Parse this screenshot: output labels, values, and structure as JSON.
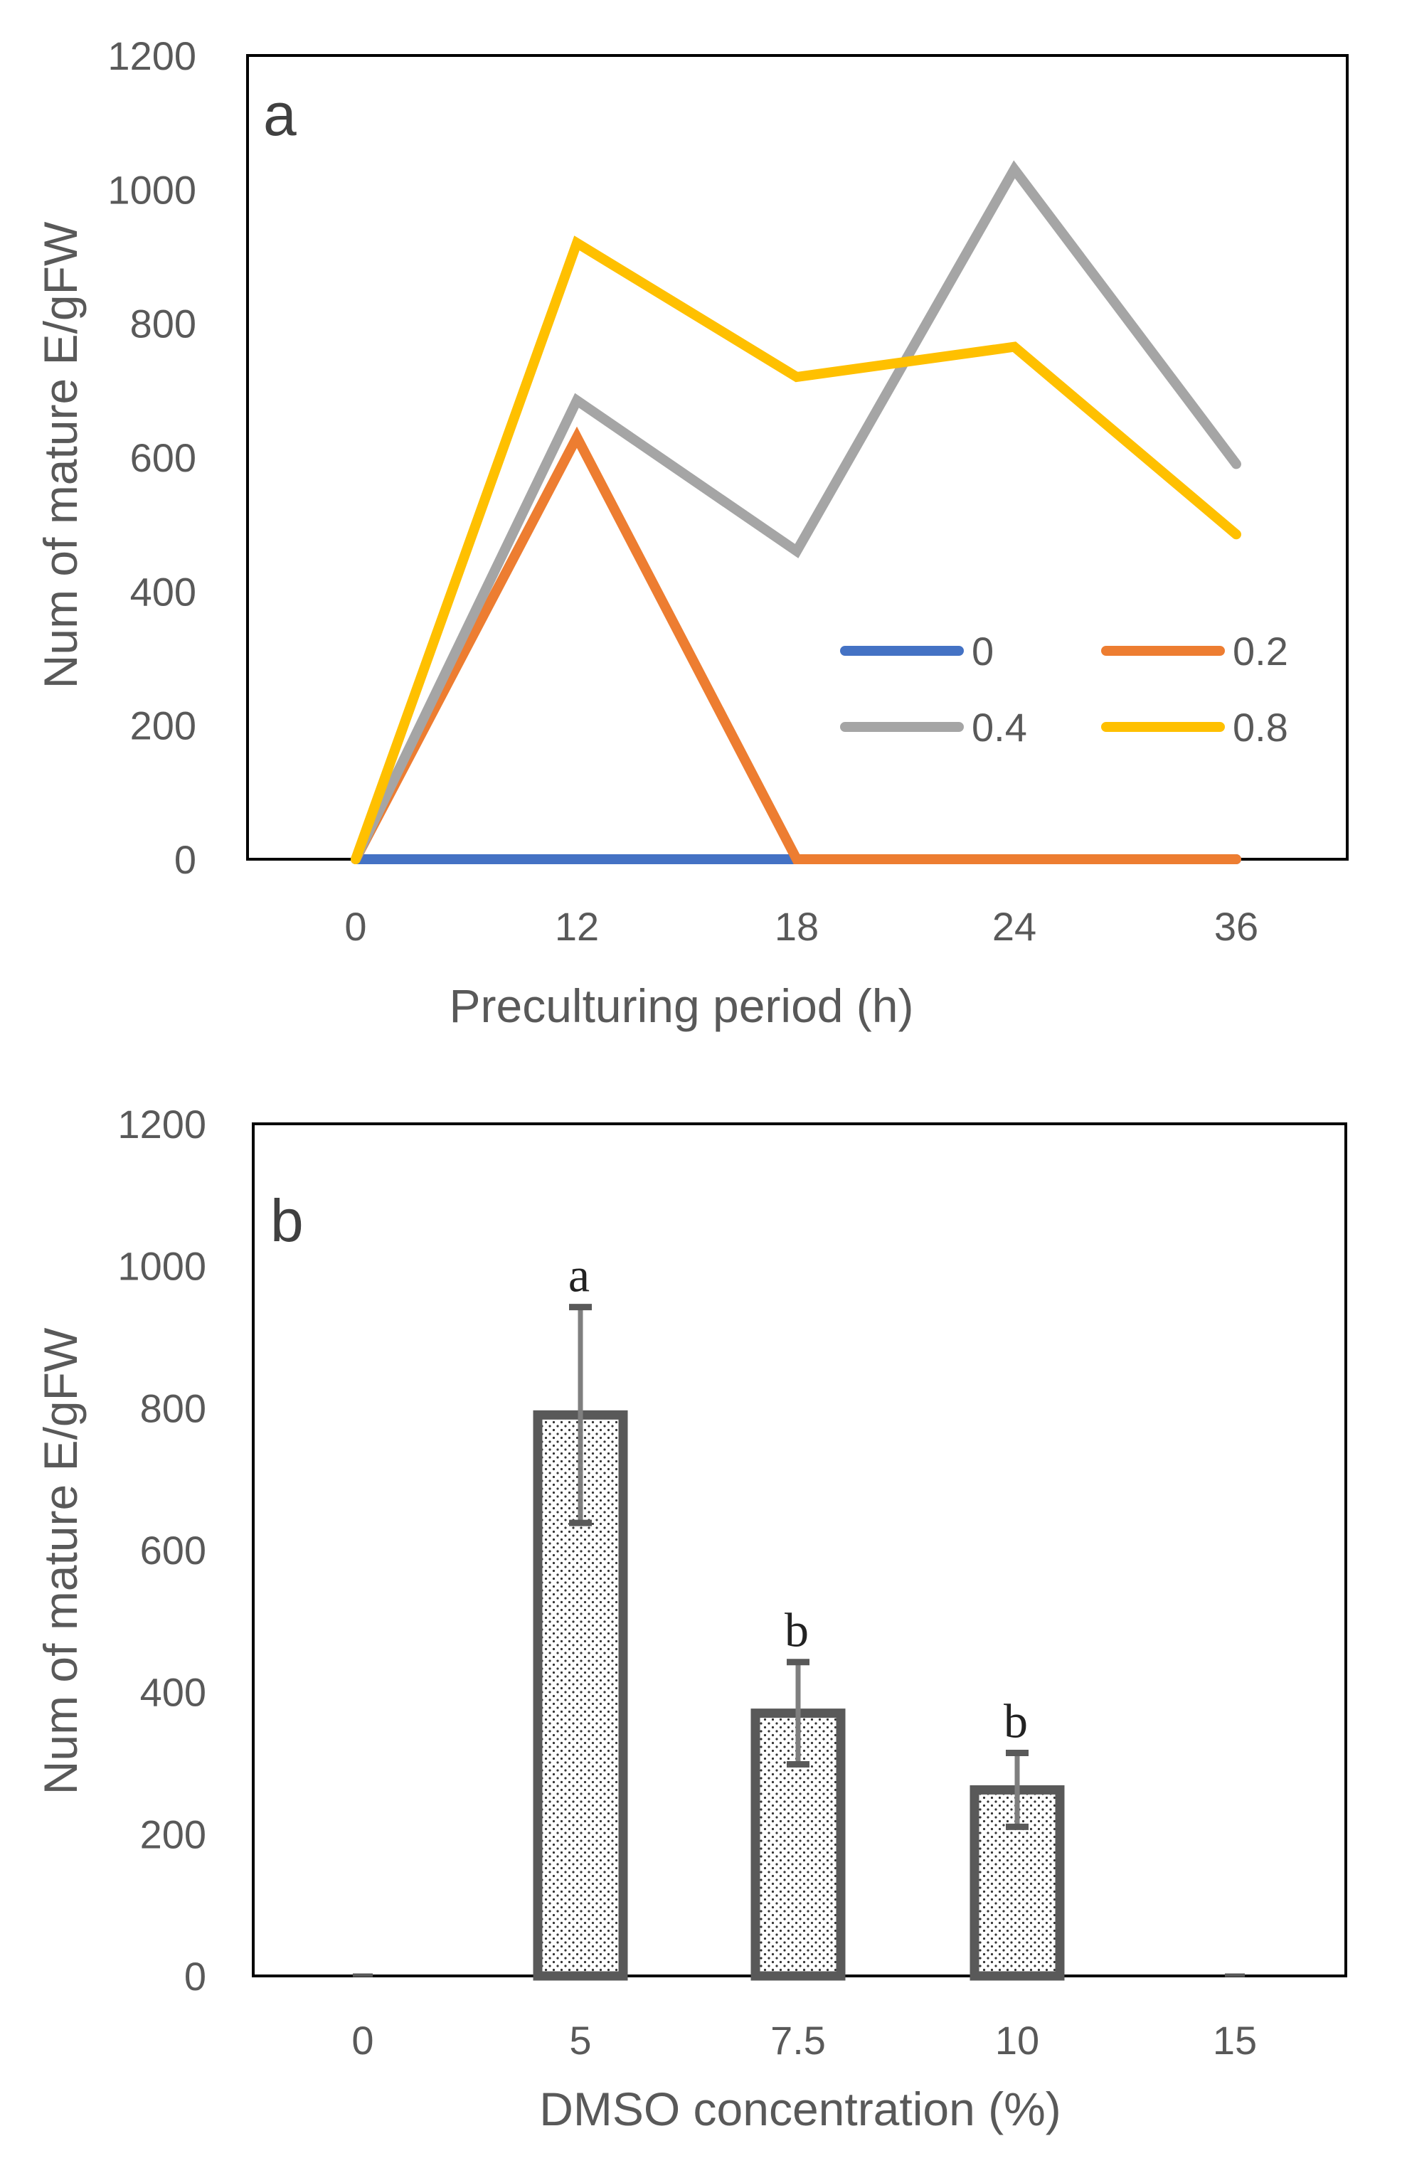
{
  "chart_data": [
    {
      "type": "line",
      "panel_label": "a",
      "xlabel": "Preculturing period (h)",
      "ylabel": "Num of mature E/gFW",
      "categories": [
        "0",
        "12",
        "18",
        "24",
        "36"
      ],
      "ylim": [
        0,
        1200
      ],
      "yticks": [
        "0",
        "200",
        "400",
        "600",
        "800",
        "1000",
        "1200"
      ],
      "grid": false,
      "legend_position": "lower-right",
      "series": [
        {
          "name": "0",
          "color": "#4472C4",
          "values": [
            0,
            0,
            0,
            0,
            0
          ]
        },
        {
          "name": "0.2",
          "color": "#ED7D31",
          "values": [
            0,
            630,
            0,
            0,
            0
          ]
        },
        {
          "name": "0.4",
          "color": "#A5A5A5",
          "values": [
            0,
            685,
            460,
            1030,
            590
          ]
        },
        {
          "name": "0.8",
          "color": "#FFC000",
          "values": [
            0,
            920,
            720,
            765,
            485
          ]
        }
      ]
    },
    {
      "type": "bar",
      "panel_label": "b",
      "xlabel": "DMSO concentration (%)",
      "ylabel": "Num of mature E/gFW",
      "categories": [
        "0",
        "5",
        "7.5",
        "10",
        "15"
      ],
      "values": [
        0,
        790,
        370,
        262,
        0
      ],
      "errors": [
        0,
        152,
        72,
        52,
        0
      ],
      "significance": [
        "",
        "a",
        "b",
        "b",
        ""
      ],
      "ylim": [
        0,
        1200
      ],
      "yticks": [
        "0",
        "200",
        "400",
        "600",
        "800",
        "1000",
        "1200"
      ],
      "grid": false,
      "bar_pattern": "dotted",
      "bar_edge_color": "#595959"
    }
  ]
}
